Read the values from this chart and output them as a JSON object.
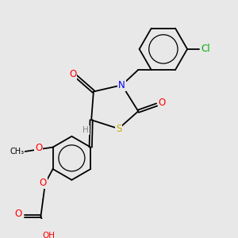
{
  "background_color": "#e8e8e8",
  "atom_colors": {
    "O": "#ff0000",
    "N": "#0000ff",
    "S": "#ccaa00",
    "Cl": "#00aa00",
    "H": "#808080"
  },
  "bond_color": "#000000",
  "bond_lw": 1.3
}
